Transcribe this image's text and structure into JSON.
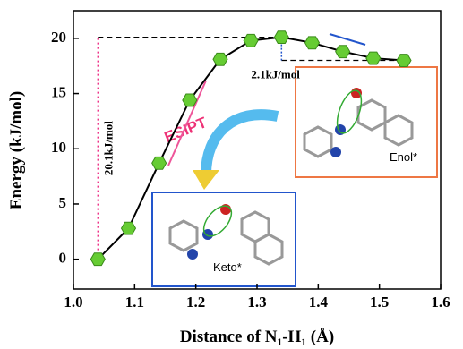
{
  "chart_data": {
    "type": "line",
    "xlabel": "Distance of N₁-H₁ (Å)",
    "ylabel": "Energy (kJ/mol)",
    "x": [
      1.04,
      1.09,
      1.14,
      1.19,
      1.24,
      1.29,
      1.34,
      1.39,
      1.44,
      1.49,
      1.54
    ],
    "series": [
      {
        "color": "#66cc33",
        "values": [
          0,
          2.8,
          8.7,
          14.4,
          18.1,
          19.8,
          20.1,
          19.6,
          18.8,
          18.2,
          18.0
        ]
      }
    ],
    "xlim": [
      1.0,
      1.6
    ],
    "xticks": [
      {
        "value": 1.0,
        "label": "1.0"
      },
      {
        "value": 1.1,
        "label": "1.1"
      },
      {
        "value": 1.2,
        "label": "1.2"
      },
      {
        "value": 1.3,
        "label": "1.3"
      },
      {
        "value": 1.4,
        "label": "1.4"
      },
      {
        "value": 1.5,
        "label": "1.5"
      },
      {
        "value": 1.6,
        "label": "1.6"
      }
    ],
    "ylim": [
      -2.7,
      22.5
    ],
    "yticks": [
      0,
      5,
      10,
      15,
      20
    ],
    "annotations": {
      "barrier": "20.1kJ/mol",
      "gap": "2.1kJ/mol",
      "process": "ESIPT",
      "keto": "Keto*",
      "enol": "Enol*"
    }
  }
}
